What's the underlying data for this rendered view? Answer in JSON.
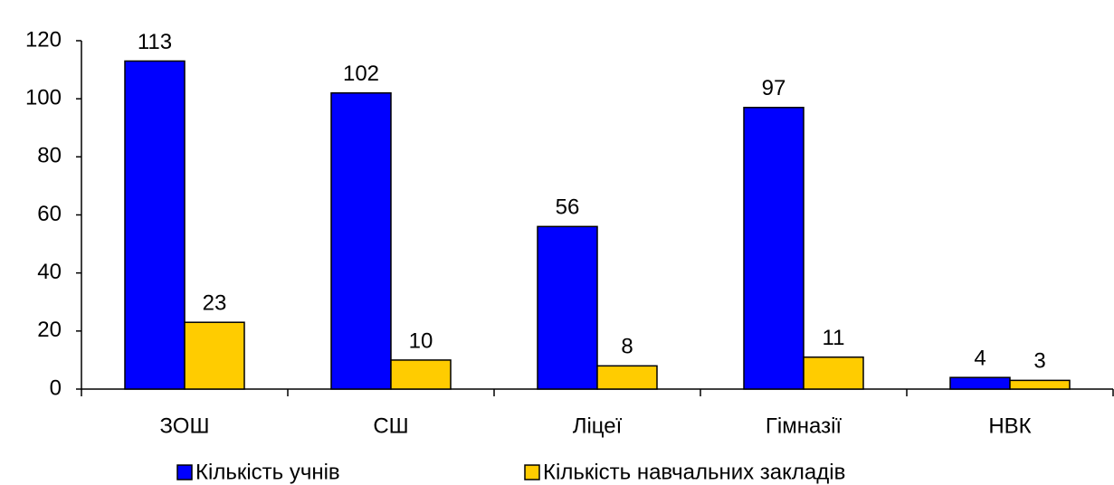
{
  "chart_data": {
    "type": "bar",
    "categories": [
      "ЗОШ",
      "СШ",
      "Ліцеї",
      "Гімназії",
      "НВК"
    ],
    "series": [
      {
        "name": "Кількість учнів",
        "color": "#0000ff",
        "values": [
          113,
          102,
          56,
          97,
          4
        ]
      },
      {
        "name": "Кількість навчальних закладів",
        "color": "#ffcc00",
        "values": [
          23,
          10,
          8,
          11,
          3
        ]
      }
    ],
    "ylim": [
      0,
      120
    ],
    "yticks": [
      0,
      20,
      40,
      60,
      80,
      100,
      120
    ],
    "grid": false,
    "legend": "bottom"
  }
}
